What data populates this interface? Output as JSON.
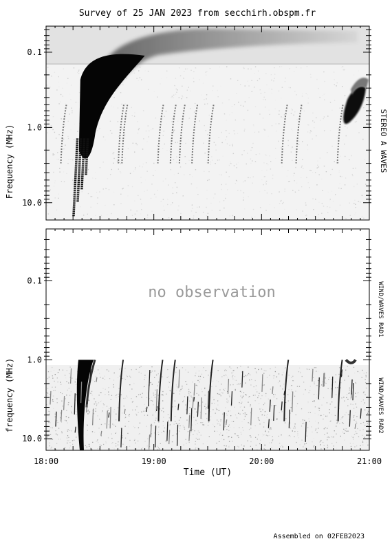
{
  "chart_data": [
    {
      "type": "heatmap",
      "title": "Survey of 25 JAN 2023 from secchirh.obspm.fr",
      "instrument_label": "STEREO A WAVES",
      "ylabel": "Frequency (MHz)",
      "y_scale": "log",
      "y_reversed": true,
      "ylim": [
        0.045,
        17
      ],
      "yticks": [
        "0.1",
        "1.0",
        "10.0"
      ],
      "xlim": [
        "18:00",
        "21:00"
      ],
      "colormap": "white-to-black (intensity)",
      "features": [
        {
          "name": "type III burst",
          "time_start": "18:16",
          "time_end": "18:55",
          "freq_top": 0.1,
          "freq_bottom": 15
        },
        {
          "name": "type III burst",
          "time_start": "20:42",
          "time_end": "20:55",
          "freq_top": 0.3,
          "freq_bottom": 1.5
        },
        {
          "name": "faint drifts",
          "times": [
            "18:09",
            "18:41",
            "18:43",
            "19:03",
            "19:10",
            "19:15",
            "19:22",
            "19:31",
            "20:12",
            "20:20",
            "20:43"
          ]
        }
      ]
    },
    {
      "type": "heatmap",
      "instrument_labels": [
        "WIND/WAVES RAD1",
        "WIND/WAVES RAD2"
      ],
      "ylabel": "frequency (MHz)",
      "y_scale": "log",
      "y_reversed": true,
      "ylim": [
        0.022,
        14
      ],
      "yticks": [
        "0.1",
        "1.0",
        "10.0"
      ],
      "xlim": [
        "18:00",
        "21:00"
      ],
      "xticks": [
        "18:00",
        "19:00",
        "20:00",
        "21:00"
      ],
      "xlabel": "Time (UT)",
      "annotation": "no observation",
      "colormap": "white-to-black (intensity)"
    }
  ],
  "footer": "Assembled on 02FEB2023"
}
